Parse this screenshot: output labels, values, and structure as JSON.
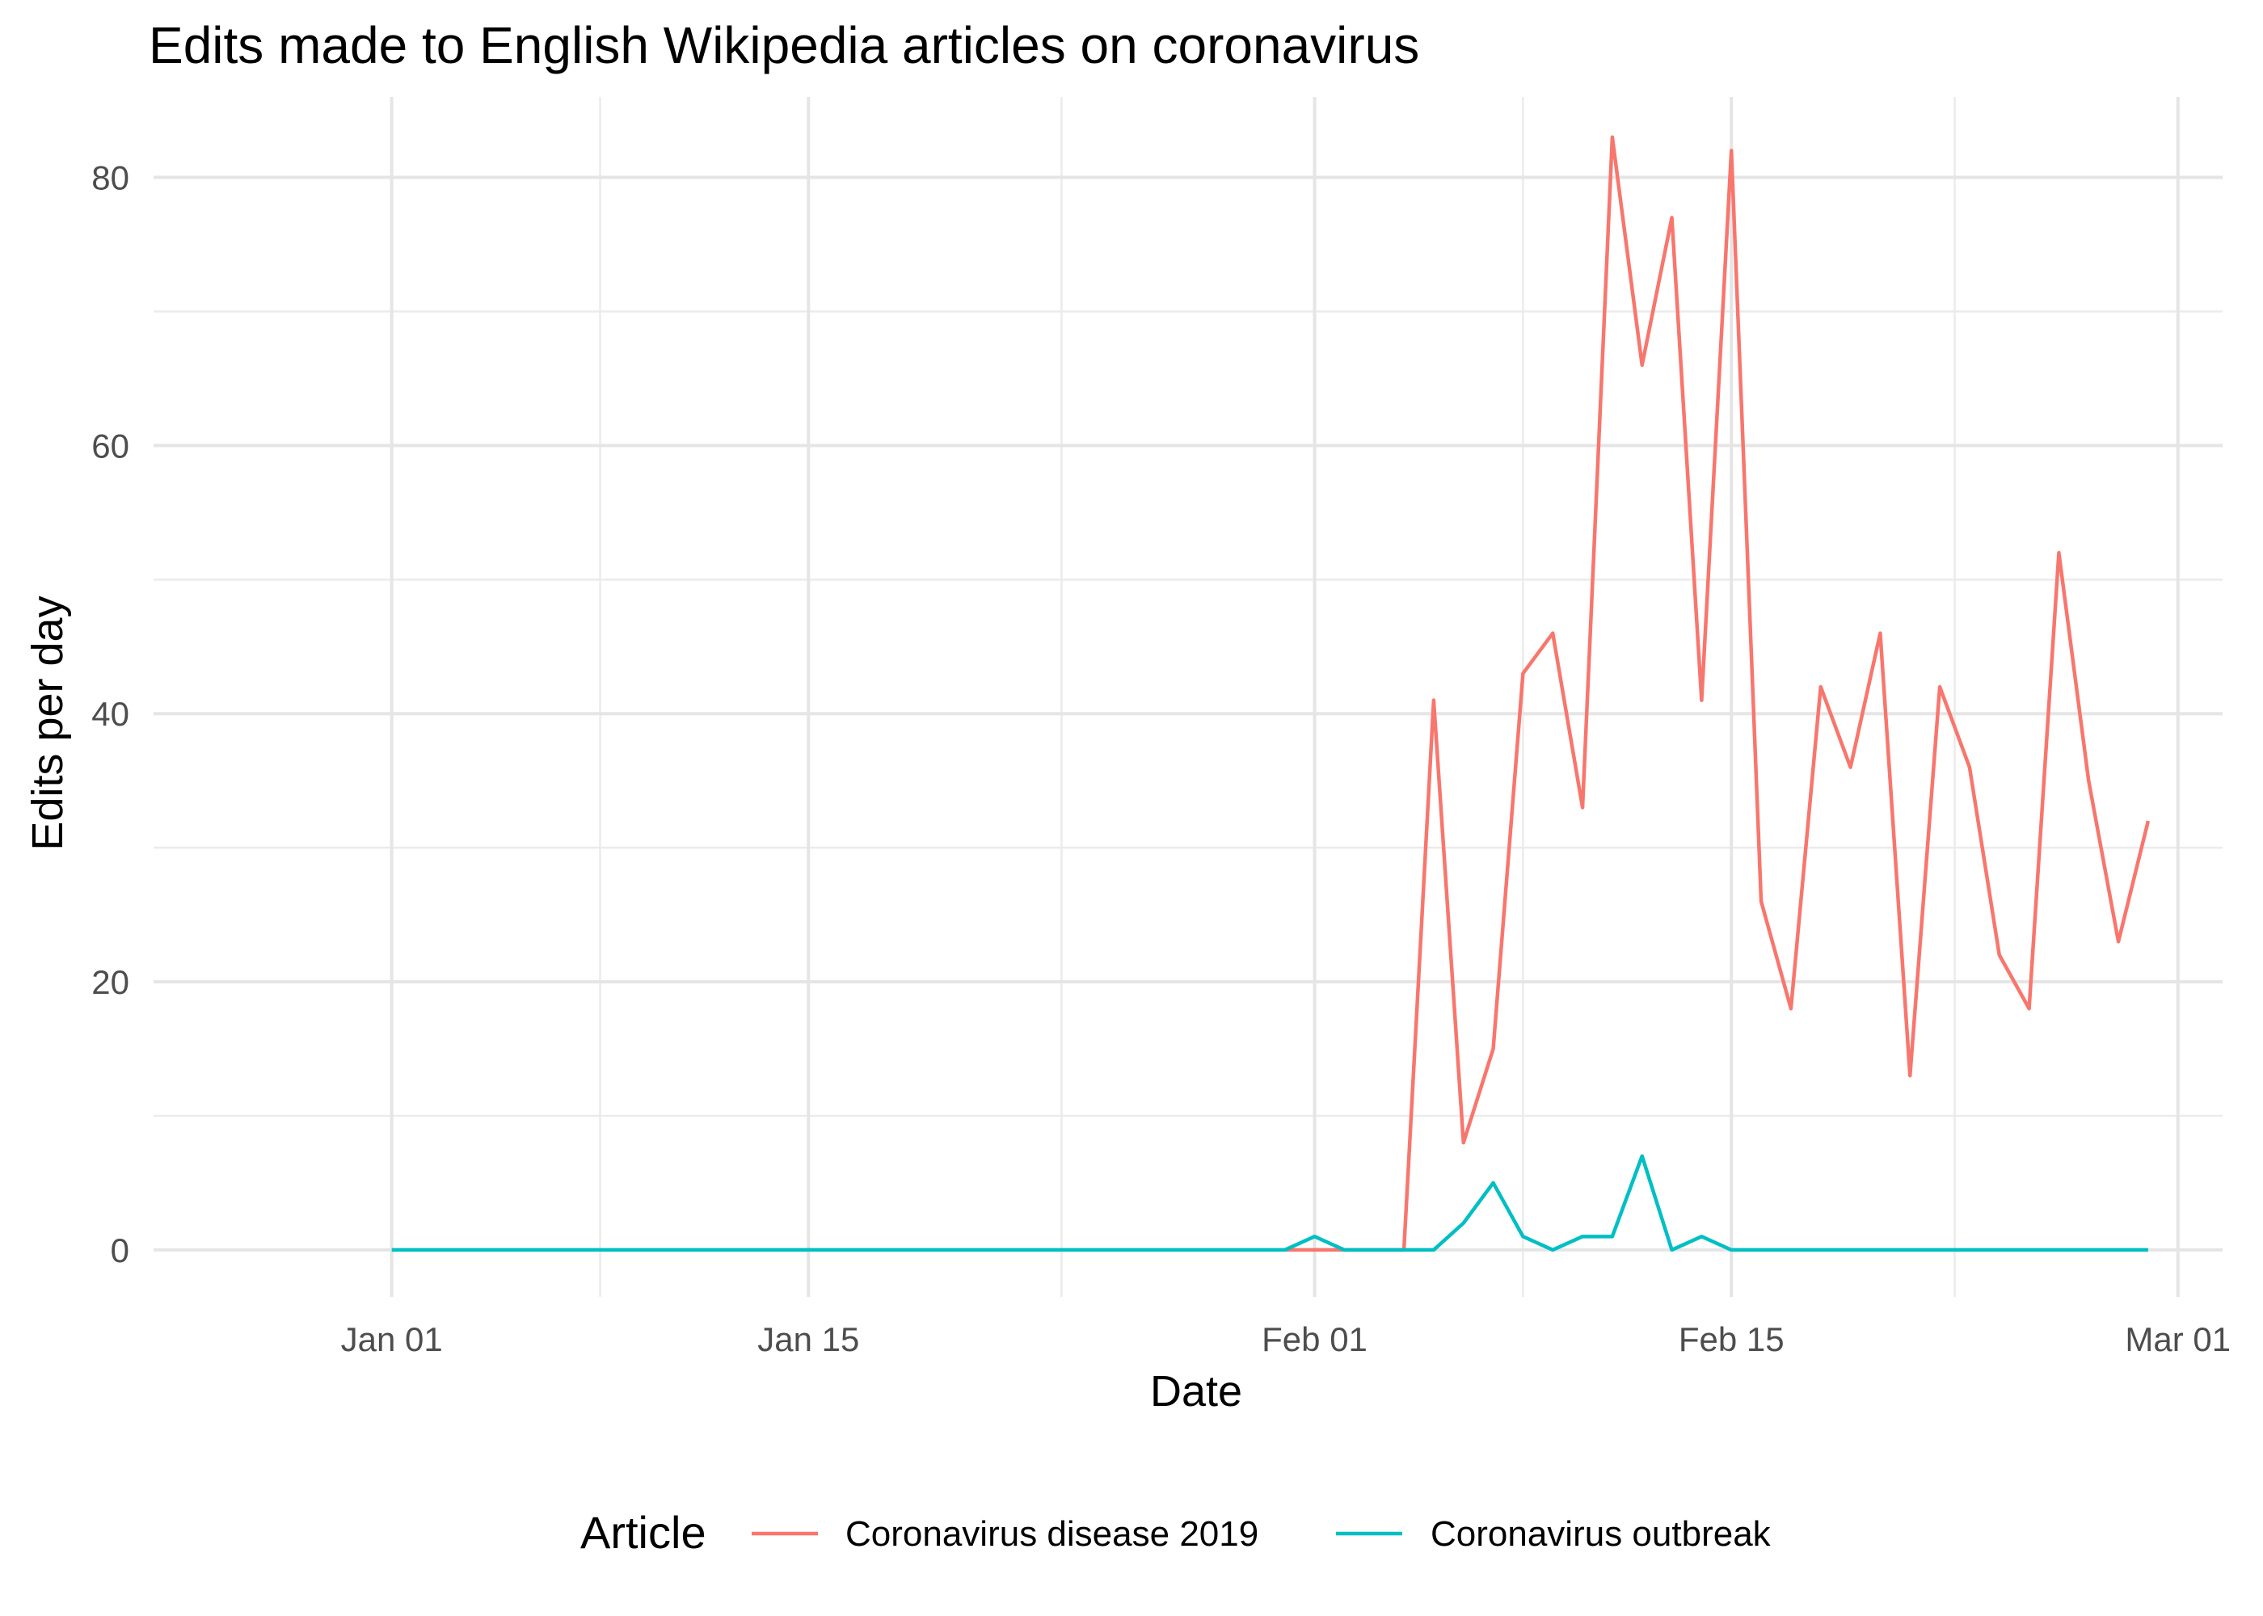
{
  "chart_data": {
    "type": "line",
    "title": "Edits made to English Wikipedia articles on coronavirus",
    "xlabel": "Date",
    "ylabel": "Edits per day",
    "x_ticks": [
      "Jan 01",
      "Jan 15",
      "Feb 01",
      "Feb 15",
      "Mar 01"
    ],
    "x_tick_dates": [
      "2020-01-01",
      "2020-01-15",
      "2020-02-01",
      "2020-02-15",
      "2020-03-01"
    ],
    "xlim": [
      "2019-12-29",
      "2020-03-01"
    ],
    "y_ticks": [
      0,
      20,
      40,
      60,
      80
    ],
    "ylim": [
      -3.5,
      86
    ],
    "grid": true,
    "legend": {
      "title": "Article",
      "position": "bottom"
    },
    "series": [
      {
        "name": "Coronavirus disease 2019",
        "color": "#F8766D",
        "points": [
          [
            "2020-01-31",
            0
          ],
          [
            "2020-02-01",
            0
          ],
          [
            "2020-02-02",
            0
          ],
          [
            "2020-02-03",
            0
          ],
          [
            "2020-02-04",
            0
          ],
          [
            "2020-02-05",
            41
          ],
          [
            "2020-02-06",
            8
          ],
          [
            "2020-02-07",
            15
          ],
          [
            "2020-02-08",
            43
          ],
          [
            "2020-02-09",
            46
          ],
          [
            "2020-02-10",
            33
          ],
          [
            "2020-02-11",
            83
          ],
          [
            "2020-02-12",
            66
          ],
          [
            "2020-02-13",
            77
          ],
          [
            "2020-02-14",
            41
          ],
          [
            "2020-02-15",
            82
          ],
          [
            "2020-02-16",
            26
          ],
          [
            "2020-02-17",
            18
          ],
          [
            "2020-02-18",
            42
          ],
          [
            "2020-02-19",
            36
          ],
          [
            "2020-02-20",
            46
          ],
          [
            "2020-02-21",
            13
          ],
          [
            "2020-02-22",
            42
          ],
          [
            "2020-02-23",
            36
          ],
          [
            "2020-02-24",
            22
          ],
          [
            "2020-02-25",
            18
          ],
          [
            "2020-02-26",
            52
          ],
          [
            "2020-02-27",
            35
          ],
          [
            "2020-02-28",
            23
          ],
          [
            "2020-02-29",
            32
          ]
        ]
      },
      {
        "name": "Coronavirus outbreak",
        "color": "#00BFC4",
        "points": [
          [
            "2020-01-01",
            0
          ],
          [
            "2020-01-31",
            0
          ],
          [
            "2020-02-01",
            1
          ],
          [
            "2020-02-02",
            0
          ],
          [
            "2020-02-03",
            0
          ],
          [
            "2020-02-04",
            0
          ],
          [
            "2020-02-05",
            0
          ],
          [
            "2020-02-06",
            2
          ],
          [
            "2020-02-07",
            5
          ],
          [
            "2020-02-08",
            1
          ],
          [
            "2020-02-09",
            0
          ],
          [
            "2020-02-10",
            1
          ],
          [
            "2020-02-11",
            1
          ],
          [
            "2020-02-12",
            7
          ],
          [
            "2020-02-13",
            0
          ],
          [
            "2020-02-14",
            1
          ],
          [
            "2020-02-15",
            0
          ],
          [
            "2020-02-29",
            0
          ]
        ]
      }
    ]
  }
}
